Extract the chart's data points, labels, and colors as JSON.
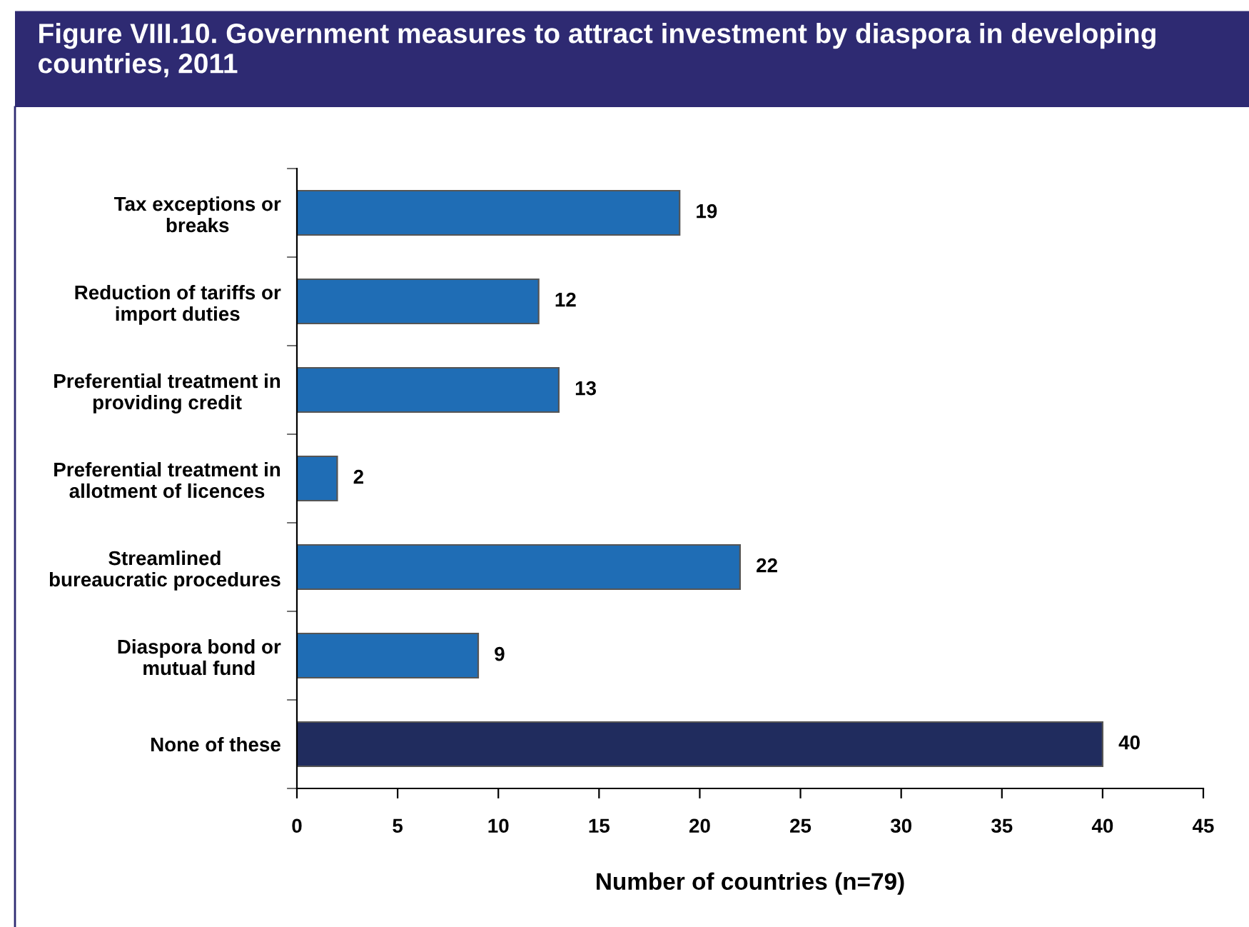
{
  "chart_data": {
    "type": "bar",
    "orientation": "horizontal",
    "title": "Figure VIII.10. Government measures to attract investment by diaspora in developing countries, 2011",
    "categories": [
      "Tax exceptions or\nbreaks",
      "Reduction of tariffs or\nimport duties",
      "Preferential treatment in\nproviding credit",
      "Preferential treatment in\nallotment of licences",
      "Streamlined\nbureaucratic procedures",
      "Diaspora bond or\nmutual fund",
      "None of these"
    ],
    "values": [
      19,
      12,
      13,
      2,
      22,
      9,
      40
    ],
    "colors": [
      "#1f6db5",
      "#1f6db5",
      "#1f6db5",
      "#1f6db5",
      "#1f6db5",
      "#1f6db5",
      "#202c5e"
    ],
    "xlabel": "Number of countries (n=79)",
    "xlim": [
      0,
      45
    ],
    "xticks": [
      0,
      5,
      10,
      15,
      20,
      25,
      30,
      35,
      40,
      45
    ],
    "data_labels": true,
    "grid": false,
    "legend": false
  }
}
